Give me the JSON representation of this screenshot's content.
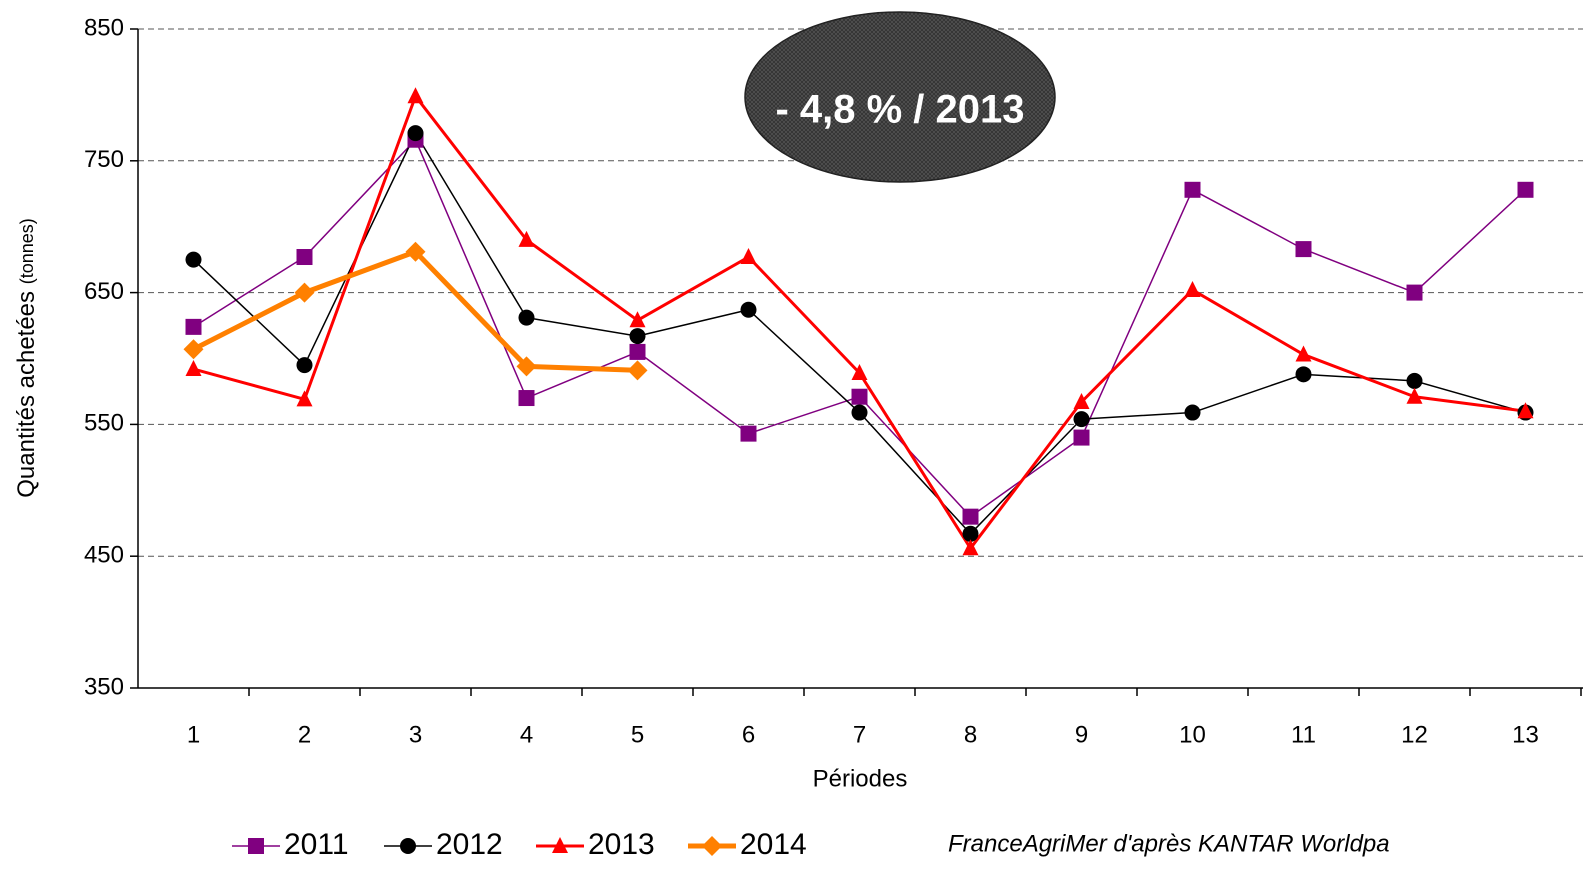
{
  "chart_data": {
    "type": "line",
    "ylabel": "Quantités achetées",
    "ylabel_unit": "(tonnes)",
    "xlabel": "Périodes",
    "annotation": "- 4,8 % / 2013",
    "source": "FranceAgriMer d'après KANTAR Worldpa",
    "categories": [
      "1",
      "2",
      "3",
      "4",
      "5",
      "6",
      "7",
      "8",
      "9",
      "10",
      "11",
      "12",
      "13"
    ],
    "ylim": [
      350,
      850
    ],
    "yticks": [
      350,
      450,
      550,
      650,
      750,
      850
    ],
    "grid": true,
    "series": [
      {
        "name": "2011",
        "color": "#800080",
        "marker": "square",
        "width": 1.5,
        "values": [
          624,
          677,
          766,
          570,
          605,
          543,
          571,
          480,
          540,
          728,
          683,
          650,
          728
        ]
      },
      {
        "name": "2012",
        "color": "#000000",
        "marker": "circle",
        "width": 1.5,
        "values": [
          675,
          595,
          771,
          631,
          617,
          637,
          559,
          467,
          554,
          559,
          588,
          583,
          559
        ]
      },
      {
        "name": "2013",
        "color": "#ff0000",
        "marker": "triangle",
        "width": 3,
        "values": [
          592,
          569,
          799,
          690,
          629,
          677,
          589,
          456,
          567,
          652,
          603,
          571,
          560
        ]
      },
      {
        "name": "2014",
        "color": "#ff8000",
        "marker": "diamond",
        "width": 5,
        "values": [
          607,
          650,
          681,
          594,
          591,
          null,
          null,
          null,
          null,
          null,
          null,
          null,
          null
        ]
      }
    ]
  }
}
